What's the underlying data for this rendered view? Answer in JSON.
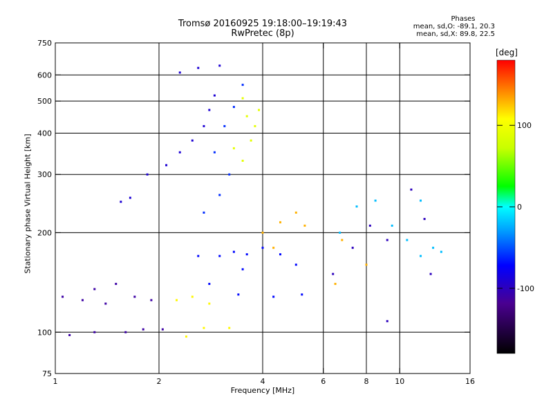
{
  "chart_data": {
    "type": "scatter",
    "title": "Tromsø 20160925 19:18:00–19:19:43",
    "subtitle": "RwPretec (8p)",
    "xlabel": "Frequency [MHz]",
    "ylabel": "Stationary phase Virtual Height [km]",
    "x_scale": "log",
    "y_scale": "log",
    "xlim": [
      1,
      16
    ],
    "ylim": [
      75,
      750
    ],
    "x_ticks": [
      "1",
      "2",
      "4",
      "6",
      "8",
      "10",
      "16"
    ],
    "y_ticks": [
      "75",
      "100",
      "200",
      "300",
      "400",
      "500",
      "600",
      "750"
    ],
    "x_grid": [
      2,
      4,
      6,
      8,
      10
    ],
    "y_grid": [
      100,
      200,
      300,
      400,
      500,
      600
    ],
    "grid": true,
    "legend": {
      "title": "Phases",
      "lines": [
        "mean, sd,O: -89.1, 20.3",
        "mean, sd,X:  89.8, 22.5"
      ]
    },
    "colorbar": {
      "unit": "[deg]",
      "ticks": [
        "100",
        "0",
        "-100"
      ],
      "tick_values": [
        100,
        0,
        -100
      ],
      "range": [
        -180,
        180
      ]
    },
    "series": [
      {
        "phase": -110,
        "points": [
          [
            1.05,
            128
          ],
          [
            1.2,
            125
          ],
          [
            1.4,
            122
          ],
          [
            1.7,
            128
          ],
          [
            1.9,
            125
          ],
          [
            1.1,
            98
          ],
          [
            1.3,
            100
          ],
          [
            1.6,
            100
          ],
          [
            1.8,
            102
          ],
          [
            2.05,
            102
          ],
          [
            1.5,
            140
          ],
          [
            1.3,
            135
          ]
        ]
      },
      {
        "phase": -90,
        "points": [
          [
            1.55,
            248
          ],
          [
            1.65,
            255
          ],
          [
            1.85,
            300
          ],
          [
            2.1,
            320
          ],
          [
            2.3,
            350
          ],
          [
            2.5,
            380
          ],
          [
            2.7,
            420
          ],
          [
            2.8,
            470
          ],
          [
            2.9,
            520
          ],
          [
            2.3,
            610
          ],
          [
            2.6,
            630
          ],
          [
            3.0,
            640
          ]
        ]
      },
      {
        "phase": -70,
        "points": [
          [
            2.6,
            170
          ],
          [
            3.0,
            170
          ],
          [
            3.3,
            175
          ],
          [
            3.6,
            172
          ],
          [
            4.0,
            180
          ],
          [
            4.5,
            172
          ],
          [
            5.0,
            160
          ],
          [
            3.4,
            130
          ],
          [
            4.3,
            128
          ],
          [
            5.2,
            130
          ],
          [
            2.8,
            140
          ],
          [
            3.5,
            155
          ]
        ]
      },
      {
        "phase": -60,
        "points": [
          [
            2.7,
            230
          ],
          [
            3.0,
            260
          ],
          [
            3.2,
            300
          ],
          [
            2.9,
            350
          ],
          [
            3.1,
            420
          ],
          [
            3.3,
            480
          ],
          [
            3.5,
            560
          ]
        ]
      },
      {
        "phase": 90,
        "points": [
          [
            3.5,
            330
          ],
          [
            3.7,
            380
          ],
          [
            3.8,
            420
          ],
          [
            3.9,
            470
          ],
          [
            3.6,
            450
          ],
          [
            3.3,
            360
          ],
          [
            3.5,
            510
          ]
        ]
      },
      {
        "phase": 110,
        "points": [
          [
            2.25,
            125
          ],
          [
            2.5,
            128
          ],
          [
            2.8,
            122
          ],
          [
            2.4,
            97
          ],
          [
            2.7,
            103
          ],
          [
            3.2,
            103
          ]
        ]
      },
      {
        "phase": 130,
        "points": [
          [
            4.0,
            200
          ],
          [
            4.5,
            215
          ],
          [
            5.0,
            230
          ],
          [
            5.3,
            210
          ],
          [
            4.3,
            180
          ],
          [
            6.5,
            140
          ],
          [
            8.0,
            160
          ],
          [
            6.8,
            190
          ]
        ]
      },
      {
        "phase": -20,
        "points": [
          [
            6.7,
            200
          ],
          [
            7.5,
            240
          ],
          [
            8.5,
            250
          ],
          [
            9.5,
            210
          ],
          [
            10.5,
            190
          ],
          [
            11.5,
            170
          ],
          [
            12.5,
            180
          ],
          [
            13.2,
            175
          ],
          [
            11.5,
            250
          ]
        ]
      },
      {
        "phase": -100,
        "points": [
          [
            6.4,
            150
          ],
          [
            7.3,
            180
          ],
          [
            8.2,
            210
          ],
          [
            9.2,
            190
          ],
          [
            9.2,
            108
          ],
          [
            10.8,
            270
          ],
          [
            11.8,
            220
          ],
          [
            12.3,
            150
          ]
        ]
      }
    ]
  }
}
